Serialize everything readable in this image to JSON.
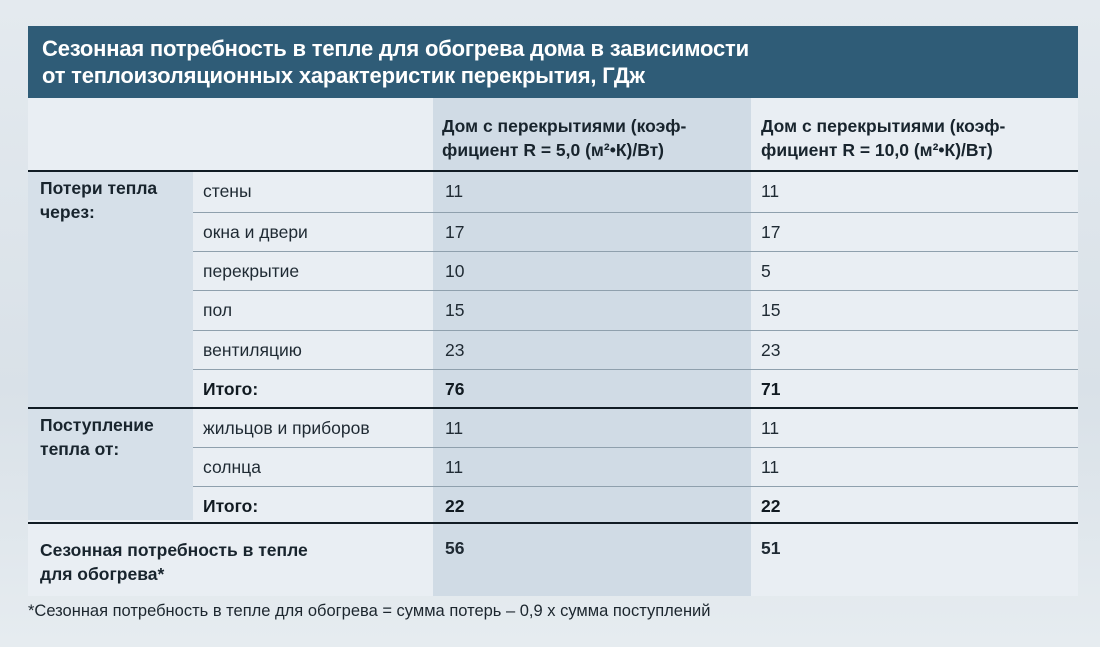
{
  "title": {
    "line1": "Сезонная потребность в тепле для обогрева дома в зависимости",
    "line2": "от теплоизоляционных характеристик перекрытия, ГДж"
  },
  "headers": {
    "col1": {
      "line1": "Дом с перекрытиями (коэф-",
      "line2": "фициент R = 5,0 (м²•К)/Вт)"
    },
    "col2": {
      "line1": "Дом с перекрытиями (коэф-",
      "line2": "фициент R = 10,0 (м²•К)/Вт)"
    }
  },
  "losses": {
    "label_line1": "Потери тепла",
    "label_line2": "через:",
    "rows": [
      {
        "name": "стены",
        "v1": "11",
        "v2": "11"
      },
      {
        "name": "окна и двери",
        "v1": "17",
        "v2": "17"
      },
      {
        "name": "перекрытие",
        "v1": "10",
        "v2": "5"
      },
      {
        "name": "пол",
        "v1": "15",
        "v2": "15"
      },
      {
        "name": "вентиляцию",
        "v1": "23",
        "v2": "23"
      }
    ],
    "total": {
      "name": "Итого:",
      "v1": "76",
      "v2": "71"
    }
  },
  "gains": {
    "label_line1": "Поступление",
    "label_line2": "тепла от:",
    "rows": [
      {
        "name": "жильцов и приборов",
        "v1": "11",
        "v2": "11"
      },
      {
        "name": "солнца",
        "v1": "11",
        "v2": "11"
      }
    ],
    "total": {
      "name": "Итого:",
      "v1": "22",
      "v2": "22"
    }
  },
  "season": {
    "label_line1": "Сезонная потребность в тепле",
    "label_line2": "для обогрева*",
    "v1": "56",
    "v2": "51"
  },
  "footnote": "*Сезонная потребность в тепле для обогрева = сумма потерь – 0,9 х сумма поступлений"
}
